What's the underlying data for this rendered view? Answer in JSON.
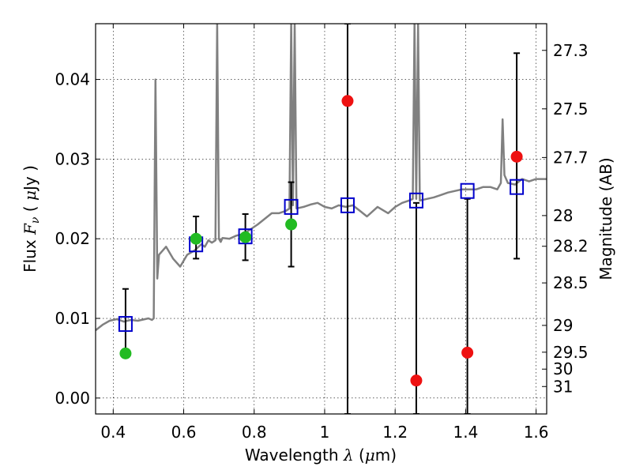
{
  "chart_data": {
    "type": "scatter",
    "xlabel_parts": [
      "Wavelength  ",
      "λ",
      " (",
      "μ",
      "m)"
    ],
    "ylabel_parts": [
      "Flux  ",
      "F",
      "ν",
      "  (  ",
      "μ",
      "Jy  )"
    ],
    "y2label": "Magnitude (AB)",
    "xlim": [
      0.35,
      1.63
    ],
    "ylim": [
      -0.002,
      0.047
    ],
    "grid": true,
    "x_ticks": [
      0.4,
      0.6,
      0.8,
      1.0,
      1.2,
      1.4,
      1.6
    ],
    "x_tick_labels": [
      "0.4",
      "0.6",
      "0.8",
      "1",
      "1.2",
      "1.4",
      "1.6"
    ],
    "y_ticks": [
      0.0,
      0.01,
      0.02,
      0.03,
      0.04
    ],
    "y_tick_labels": [
      "0.00",
      "0.01",
      "0.02",
      "0.03",
      "0.04"
    ],
    "y2_ticks": [
      "27.3",
      "27.5",
      "27.7",
      "28",
      "28.2",
      "28.5",
      "29",
      "29.5",
      "30",
      "31"
    ],
    "colors": {
      "spectrum": "#808080",
      "model": "#0000cc",
      "detection": "#22bb22",
      "nondetection": "#ee1111",
      "errorbar": "#000000"
    },
    "spectrum": {
      "x": [
        0.35,
        0.37,
        0.39,
        0.41,
        0.43,
        0.45,
        0.47,
        0.49,
        0.5,
        0.51,
        0.515,
        0.52,
        0.525,
        0.53,
        0.55,
        0.57,
        0.59,
        0.61,
        0.63,
        0.65,
        0.66,
        0.67,
        0.68,
        0.69,
        0.695,
        0.7,
        0.705,
        0.71,
        0.73,
        0.75,
        0.77,
        0.79,
        0.81,
        0.83,
        0.85,
        0.87,
        0.89,
        0.9,
        0.905,
        0.91,
        0.915,
        0.92,
        0.94,
        0.96,
        0.98,
        1.0,
        1.02,
        1.04,
        1.06,
        1.08,
        1.1,
        1.12,
        1.15,
        1.18,
        1.2,
        1.22,
        1.24,
        1.25,
        1.255,
        1.26,
        1.265,
        1.27,
        1.29,
        1.31,
        1.33,
        1.35,
        1.37,
        1.39,
        1.41,
        1.43,
        1.45,
        1.47,
        1.49,
        1.5,
        1.505,
        1.51,
        1.52,
        1.54,
        1.56,
        1.58,
        1.6,
        1.63
      ],
      "y": [
        0.0085,
        0.0092,
        0.0097,
        0.0099,
        0.0096,
        0.0098,
        0.0097,
        0.0099,
        0.01,
        0.0098,
        0.01,
        0.04,
        0.015,
        0.018,
        0.019,
        0.0175,
        0.0165,
        0.018,
        0.0185,
        0.0193,
        0.019,
        0.0198,
        0.0195,
        0.0198,
        0.047,
        0.02,
        0.0196,
        0.0201,
        0.02,
        0.0204,
        0.0206,
        0.0212,
        0.0218,
        0.0225,
        0.0232,
        0.0232,
        0.0235,
        0.0238,
        0.047,
        0.0242,
        0.047,
        0.0238,
        0.024,
        0.0243,
        0.0245,
        0.024,
        0.0238,
        0.0242,
        0.024,
        0.0242,
        0.0235,
        0.0228,
        0.024,
        0.0232,
        0.024,
        0.0245,
        0.0248,
        0.025,
        0.047,
        0.025,
        0.047,
        0.0248,
        0.025,
        0.0252,
        0.0255,
        0.0258,
        0.026,
        0.0262,
        0.0262,
        0.0262,
        0.0265,
        0.0265,
        0.0262,
        0.027,
        0.035,
        0.028,
        0.027,
        0.0268,
        0.0275,
        0.0272,
        0.0275,
        0.0275
      ]
    },
    "model_points": {
      "x": [
        0.435,
        0.635,
        0.775,
        0.905,
        1.065,
        1.26,
        1.405,
        1.545
      ],
      "y": [
        0.0093,
        0.0193,
        0.0203,
        0.024,
        0.0242,
        0.0248,
        0.026,
        0.0265
      ]
    },
    "detections": [
      {
        "x": 0.435,
        "y": 0.0056,
        "err_low": 0.0056,
        "err_high": 0.0137
      },
      {
        "x": 0.635,
        "y": 0.02,
        "err_low": 0.0175,
        "err_high": 0.0228
      },
      {
        "x": 0.775,
        "y": 0.0202,
        "err_low": 0.0173,
        "err_high": 0.0231
      },
      {
        "x": 0.905,
        "y": 0.0218,
        "err_low": 0.0165,
        "err_high": 0.0271
      }
    ],
    "non_detections": [
      {
        "x": 1.065,
        "y": 0.0373,
        "err_low": -0.002,
        "err_high": 0.047
      },
      {
        "x": 1.26,
        "y": 0.0022,
        "err_low": -0.002,
        "err_high": 0.0245
      },
      {
        "x": 1.405,
        "y": 0.0057,
        "err_low": -0.002,
        "err_high": 0.025
      },
      {
        "x": 1.545,
        "y": 0.0303,
        "err_low": 0.0175,
        "err_high": 0.0433
      }
    ]
  }
}
